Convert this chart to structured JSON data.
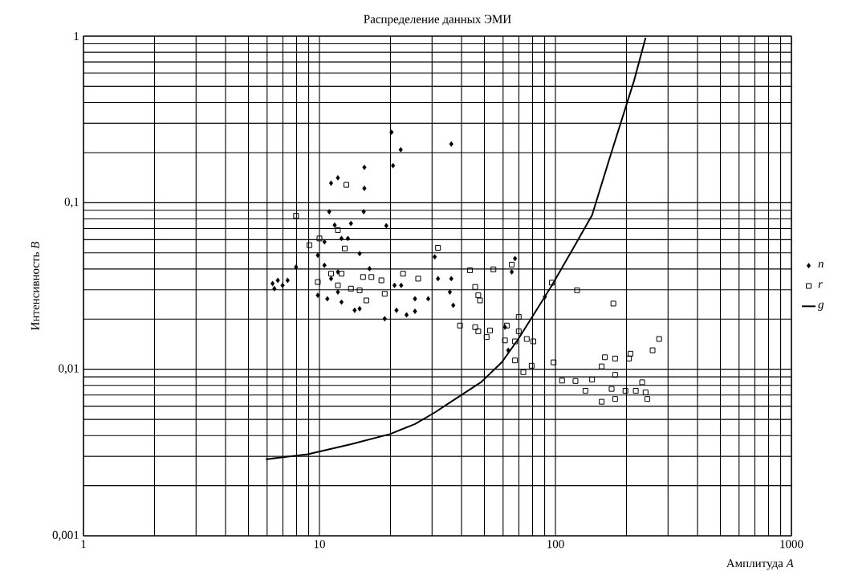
{
  "chart_data": {
    "type": "scatter",
    "title": "Распределение данных ЭМИ",
    "xlabel": "Амплитуда *A*",
    "ylabel": "Интенсивность *B*",
    "log": "xy",
    "xlim": [
      1,
      1000
    ],
    "ylim": [
      0.001,
      1
    ],
    "xticks": [
      1,
      10,
      100,
      1000
    ],
    "yticks": [
      {
        "value": 0.001,
        "label": "0,001"
      },
      {
        "value": 0.01,
        "label": "0,01"
      },
      {
        "value": 0.1,
        "label": "0,1"
      },
      1
    ],
    "grid": true,
    "legend": "right",
    "series": [
      {
        "name": "n",
        "marker": "diamond",
        "color": "#000000",
        "x": [
          6.33,
          6.66,
          6.98,
          7.33,
          6.44,
          7.96,
          11.2,
          11.97,
          15.5,
          15.5,
          15.4,
          20.2,
          22.1,
          20.5,
          19.2,
          36.2,
          9.84,
          10.5,
          11.2,
          11.97,
          9.84,
          10.8,
          11.97,
          12.4,
          10.5,
          11.0,
          11.6,
          12.4,
          13.2,
          13.6,
          14.8,
          16.3,
          14.1,
          14.8,
          18.9,
          21.2,
          23.4,
          25.4,
          25.4,
          28.9,
          31.8,
          36.2,
          36.9,
          35.7,
          20.8,
          22.2,
          30.8,
          67.4,
          65.3,
          61.1,
          63.1,
          90.2
        ],
        "values": [
          0.0327,
          0.0342,
          0.0319,
          0.0342,
          0.0305,
          0.0411,
          0.131,
          0.141,
          0.163,
          0.122,
          0.0883,
          0.265,
          0.208,
          0.167,
          0.0727,
          0.225,
          0.0484,
          0.0421,
          0.035,
          0.0384,
          0.0278,
          0.0265,
          0.0291,
          0.0253,
          0.0582,
          0.0883,
          0.0733,
          0.061,
          0.061,
          0.0751,
          0.0495,
          0.0402,
          0.0226,
          0.0231,
          0.0201,
          0.0226,
          0.0212,
          0.0223,
          0.0265,
          0.0265,
          0.035,
          0.035,
          0.0242,
          0.0291,
          0.0319,
          0.0319,
          0.0473,
          0.0462,
          0.0384,
          0.0179,
          0.013,
          0.0272
        ]
      },
      {
        "name": "r",
        "marker": "square",
        "color": "#000000",
        "x": [
          7.96,
          13.0,
          9.07,
          10,
          11.97,
          12.8,
          9.84,
          11.2,
          12.4,
          11.97,
          13.6,
          14.8,
          15.3,
          16.6,
          18.3,
          18.9,
          15.8,
          22.6,
          26.2,
          31.8,
          43.4,
          54.6,
          65.3,
          45.7,
          47.1,
          47.9,
          39.4,
          45.7,
          47.1,
          52.8,
          51.1,
          62.2,
          69.9,
          61.1,
          67.4,
          69.9,
          75.6,
          80.6,
          67.4,
          73.1,
          79.3,
          98.2,
          96.6,
          123.5,
          176,
          106.7,
          121.6,
          134,
          143,
          157,
          162,
          179,
          205,
          208,
          173,
          179,
          198,
          219,
          241,
          245,
          258,
          275,
          179,
          157,
          233
        ],
        "values": [
          0.0835,
          0.128,
          0.0556,
          0.061,
          0.0685,
          0.0531,
          0.0334,
          0.0375,
          0.0375,
          0.0319,
          0.0305,
          0.0298,
          0.0358,
          0.0358,
          0.0342,
          0.0284,
          0.0259,
          0.0375,
          0.035,
          0.0536,
          0.0393,
          0.0398,
          0.0425,
          0.0312,
          0.0278,
          0.0259,
          0.0183,
          0.0179,
          0.0169,
          0.0171,
          0.0156,
          0.0183,
          0.0206,
          0.0149,
          0.0147,
          0.0169,
          0.0152,
          0.0147,
          0.0113,
          0.0096,
          0.0105,
          0.011,
          0.0331,
          0.0298,
          0.0248,
          0.00855,
          0.0085,
          0.00743,
          0.00867,
          0.00638,
          0.0118,
          0.0116,
          0.0116,
          0.0124,
          0.00762,
          0.00663,
          0.00743,
          0.00743,
          0.00727,
          0.00663,
          0.013,
          0.0152,
          0.00925,
          0.0104,
          0.00835
        ]
      },
      {
        "name": "g",
        "type": "line",
        "marker": "none",
        "line_style": "solid",
        "color": "#000000",
        "x": [
          5.93,
          8.92,
          13.6,
          19.9,
          25.4,
          30.8,
          38.7,
          48.6,
          59.2,
          69.6,
          82.0,
          96.6,
          121,
          143,
          168,
          198,
          215,
          241
        ],
        "values": [
          0.00288,
          0.00309,
          0.00355,
          0.00408,
          0.00469,
          0.0055,
          0.0068,
          0.0084,
          0.011,
          0.0152,
          0.022,
          0.0319,
          0.0556,
          0.0843,
          0.177,
          0.37,
          0.536,
          0.977
        ]
      }
    ]
  }
}
